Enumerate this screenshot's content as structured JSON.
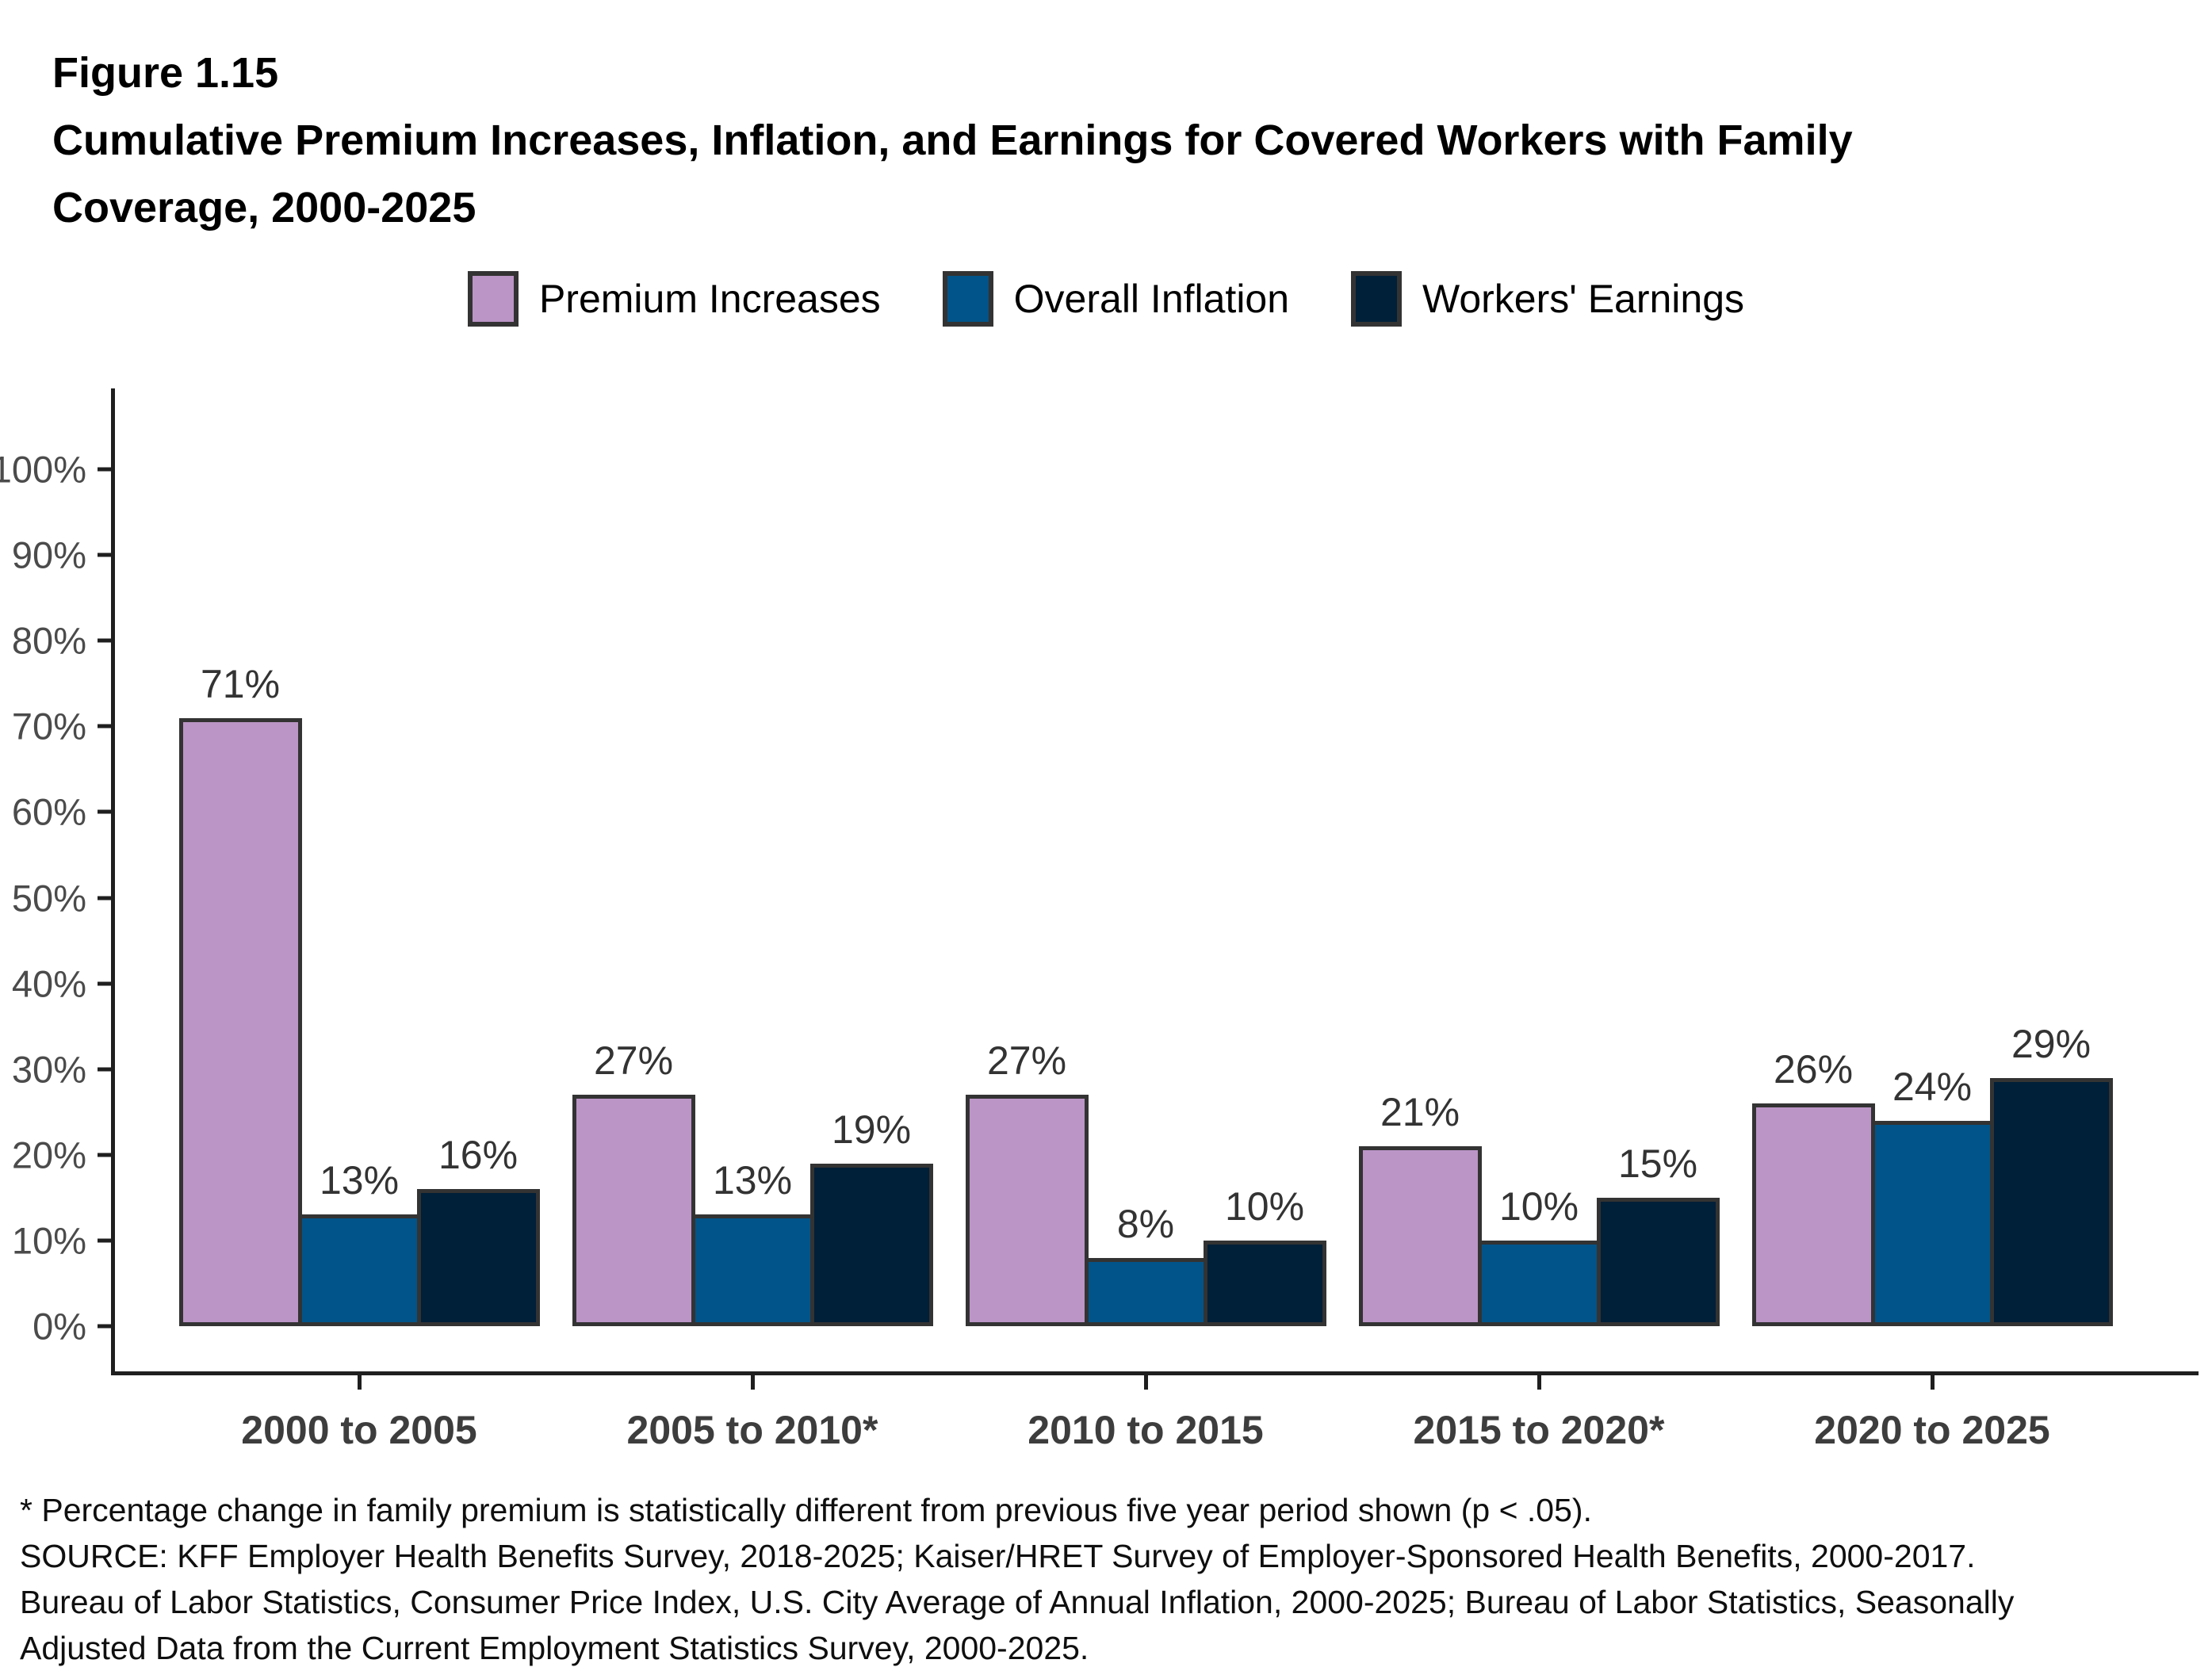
{
  "figure": {
    "label": "Figure 1.15",
    "title": "Cumulative Premium Increases, Inflation, and Earnings for Covered Workers with Family Coverage, 2000-2025"
  },
  "chart_data": {
    "type": "bar",
    "categories": [
      "2000 to 2005",
      "2005 to 2010*",
      "2010 to 2015",
      "2015 to 2020*",
      "2020 to 2025"
    ],
    "series": [
      {
        "name": "Premium Increases",
        "color": "#BB95C6",
        "values": [
          71,
          27,
          27,
          21,
          26
        ]
      },
      {
        "name": "Overall Inflation",
        "color": "#015489",
        "values": [
          13,
          13,
          8,
          10,
          24
        ]
      },
      {
        "name": "Workers' Earnings",
        "color": "#001F38",
        "values": [
          16,
          19,
          10,
          15,
          29
        ]
      }
    ],
    "value_label_suffix": "%",
    "y_axis": {
      "ticks": [
        0,
        10,
        20,
        30,
        40,
        50,
        60,
        70,
        80,
        90,
        100
      ],
      "tick_suffix": "%",
      "ylim": [
        0,
        100
      ]
    },
    "grid": false,
    "legend_position": "top"
  },
  "footnotes": {
    "asterisk": "* Percentage change in family premium is statistically different from previous five year period shown (p < .05).",
    "source": "SOURCE: KFF Employer Health Benefits Survey, 2018-2025; Kaiser/HRET Survey of Employer-Sponsored Health Benefits, 2000-2017. Bureau of Labor Statistics, Consumer Price Index, U.S. City Average of Annual Inflation, 2000-2025; Bureau of Labor Statistics, Seasonally Adjusted Data from the Current Employment Statistics Survey, 2000-2025."
  },
  "colors": {
    "axis_line": "#1f1f1f",
    "bar_border": "#333333",
    "value_label": "#333333",
    "tick_label": "#4b4b4b",
    "x_axis_label": "#3d3d3d"
  }
}
